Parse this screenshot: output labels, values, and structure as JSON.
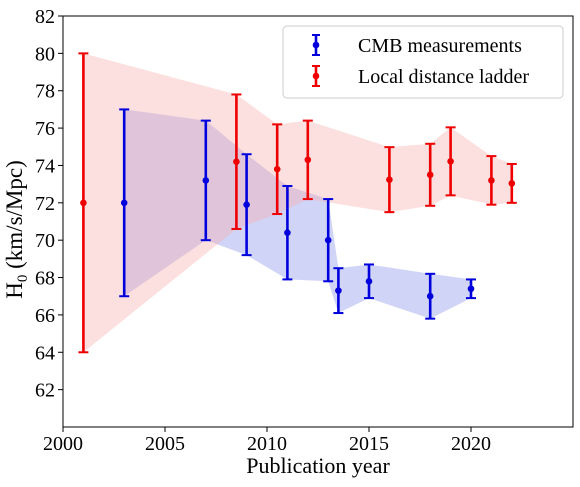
{
  "chart_data": {
    "type": "scatter",
    "title": "",
    "xlabel": "Publication year",
    "ylabel": "H0 (km/s/Mpc)",
    "ylabel_main": "H",
    "ylabel_sub": "0",
    "ylabel_rest": " (km/s/Mpc)",
    "xlim": [
      2000,
      2025
    ],
    "ylim": [
      60,
      82
    ],
    "xticks": [
      2000,
      2005,
      2010,
      2015,
      2020
    ],
    "yticks": [
      62,
      64,
      66,
      68,
      70,
      72,
      74,
      76,
      78,
      80,
      82
    ],
    "grid": false,
    "legend_position": "top-right",
    "series": [
      {
        "name": "CMB measurements",
        "color": "#0000dd",
        "band_color": "#aab0f0",
        "points": [
          {
            "x": 2003,
            "y": 72.0,
            "err": 5.0
          },
          {
            "x": 2007,
            "y": 73.2,
            "err": 3.2
          },
          {
            "x": 2009,
            "y": 71.9,
            "err": 2.7
          },
          {
            "x": 2011,
            "y": 70.4,
            "err": 2.5
          },
          {
            "x": 2013,
            "y": 70.0,
            "err": 2.2
          },
          {
            "x": 2013.5,
            "y": 67.3,
            "err": 1.2
          },
          {
            "x": 2015,
            "y": 67.8,
            "err": 0.9
          },
          {
            "x": 2018,
            "y": 67.0,
            "err": 1.2
          },
          {
            "x": 2020,
            "y": 67.4,
            "err": 0.5
          }
        ]
      },
      {
        "name": "Local distance ladder",
        "color": "#ee0000",
        "band_color": "#f7b0b0",
        "points": [
          {
            "x": 2001,
            "y": 72.0,
            "err": 8.0
          },
          {
            "x": 2008.5,
            "y": 74.2,
            "err": 3.6
          },
          {
            "x": 2010.5,
            "y": 73.8,
            "err": 2.4
          },
          {
            "x": 2012,
            "y": 74.3,
            "err": 2.1
          },
          {
            "x": 2016,
            "y": 73.24,
            "err": 1.74
          },
          {
            "x": 2018,
            "y": 73.5,
            "err": 1.66
          },
          {
            "x": 2019,
            "y": 74.22,
            "err": 1.82
          },
          {
            "x": 2021,
            "y": 73.2,
            "err": 1.3
          },
          {
            "x": 2022,
            "y": 73.04,
            "err": 1.04
          }
        ]
      }
    ]
  }
}
